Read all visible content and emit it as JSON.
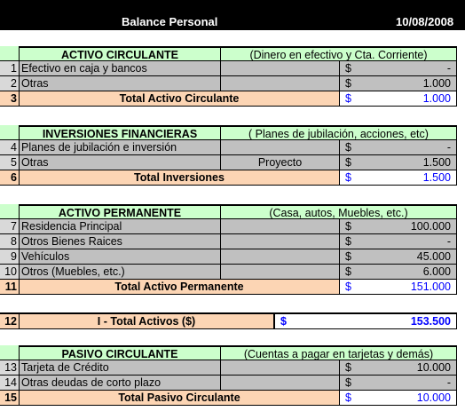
{
  "header": {
    "title": "Balance Personal",
    "date": "10/08/2008"
  },
  "activo_circulante": {
    "title": "ACTIVO CIRCULANTE",
    "note": "(Dinero en efectivo y Cta. Corriente)",
    "rows": [
      {
        "n": "1",
        "label": "Efectivo en caja y bancos",
        "extra": "",
        "cur": "$",
        "value": "-"
      },
      {
        "n": "2",
        "label": "Otras",
        "extra": "",
        "cur": "$",
        "value": "1.000"
      }
    ],
    "total": {
      "n": "3",
      "label": "Total Activo Circulante",
      "cur": "$",
      "value": "1.000"
    }
  },
  "inversiones": {
    "title": "INVERSIONES FINANCIERAS",
    "note": "( Planes de jubilación, acciones, etc)",
    "rows": [
      {
        "n": "4",
        "label": "Planes de jubilación e inversión",
        "extra": "",
        "cur": "$",
        "value": "-"
      },
      {
        "n": "5",
        "label": "Otras",
        "extra": "Proyecto",
        "cur": "$",
        "value": "1.500"
      }
    ],
    "total": {
      "n": "6",
      "label": "Total Inversiones",
      "cur": "$",
      "value": "1.500"
    }
  },
  "activo_permanente": {
    "title": "ACTIVO PERMANENTE",
    "note": "(Casa, autos, Muebles, etc.)",
    "rows": [
      {
        "n": "7",
        "label": "Residencia Principal",
        "extra": "",
        "cur": "$",
        "value": "100.000"
      },
      {
        "n": "8",
        "label": "Otros Bienes Raices",
        "extra": "",
        "cur": "$",
        "value": "-"
      },
      {
        "n": "9",
        "label": "Vehículos",
        "extra": "",
        "cur": "$",
        "value": "45.000"
      },
      {
        "n": "10",
        "label": "Otros (Muebles, etc.)",
        "extra": "",
        "cur": "$",
        "value": "6.000"
      }
    ],
    "total": {
      "n": "11",
      "label": "Total Activo Permanente",
      "cur": "$",
      "value": "151.000"
    }
  },
  "total_activos": {
    "n": "12",
    "label": "I - Total Activos ($)",
    "cur": "$",
    "value": "153.500"
  },
  "pasivo_circulante": {
    "title": "PASIVO CIRCULANTE",
    "note": "(Cuentas a pagar en tarjetas y demás)",
    "rows": [
      {
        "n": "13",
        "label": "Tarjeta de Crédito",
        "extra": "",
        "cur": "$",
        "value": "10.000"
      },
      {
        "n": "14",
        "label": "Otras deudas de corto plazo",
        "extra": "",
        "cur": "$",
        "value": "-"
      }
    ],
    "total": {
      "n": "15",
      "label": "Total Pasivo Circulante",
      "cur": "$",
      "value": "10.000"
    }
  },
  "colors": {
    "section_header": "#ccffcc",
    "data_rows": "#c0c0c0",
    "totals": "#fcd5b4",
    "amount_blue": "#0000ff"
  }
}
